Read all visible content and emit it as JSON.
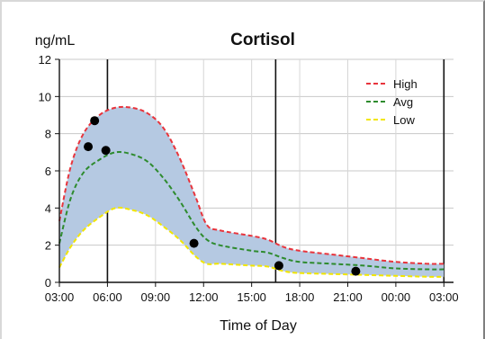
{
  "chart_data": {
    "type": "area",
    "title": "Cortisol",
    "ylabel": "ng/mL",
    "xlabel": "Time of Day",
    "x_unit": "hours elapsed from 03:00 (tick labels show clock time)",
    "xlim": [
      0,
      24.6
    ],
    "ylim": [
      0,
      12
    ],
    "x_ticks": [
      0,
      3,
      6,
      9,
      12,
      15,
      18,
      21,
      24
    ],
    "x_tick_labels": [
      "03:00",
      "06:00",
      "09:00",
      "12:00",
      "15:00",
      "18:00",
      "21:00",
      "00:00",
      "03:00"
    ],
    "y_ticks": [
      0,
      2,
      4,
      6,
      8,
      10,
      12
    ],
    "y_tick_labels": [
      "0",
      "2",
      "4",
      "6",
      "8",
      "10",
      "12"
    ],
    "grid": true,
    "major_vertical_lines": [
      3,
      13.5,
      24
    ],
    "legend_position": "top-right",
    "band_fill": "#b5c9e2",
    "series": [
      {
        "name": "High",
        "color": "#e8343c",
        "style": "dashed",
        "points": [
          [
            0,
            3.3
          ],
          [
            0.7,
            6.2
          ],
          [
            1.5,
            8.0
          ],
          [
            2.5,
            9.0
          ],
          [
            3.5,
            9.4
          ],
          [
            4.5,
            9.4
          ],
          [
            5.5,
            9.1
          ],
          [
            6.5,
            8.3
          ],
          [
            7.5,
            6.7
          ],
          [
            8.5,
            4.6
          ],
          [
            9.2,
            3.1
          ],
          [
            10.0,
            2.8
          ],
          [
            12.0,
            2.5
          ],
          [
            13.0,
            2.3
          ],
          [
            14.0,
            1.9
          ],
          [
            15.0,
            1.7
          ],
          [
            17.0,
            1.5
          ],
          [
            19.0,
            1.3
          ],
          [
            21.0,
            1.1
          ],
          [
            23.0,
            1.0
          ],
          [
            24.0,
            1.0
          ]
        ]
      },
      {
        "name": "Avg",
        "color": "#2e8b2e",
        "style": "dashed",
        "points": [
          [
            0,
            2.1
          ],
          [
            0.7,
            4.5
          ],
          [
            1.5,
            5.9
          ],
          [
            2.5,
            6.6
          ],
          [
            3.5,
            7.0
          ],
          [
            4.5,
            6.9
          ],
          [
            5.5,
            6.5
          ],
          [
            6.5,
            5.6
          ],
          [
            7.5,
            4.4
          ],
          [
            8.5,
            3.0
          ],
          [
            9.2,
            2.3
          ],
          [
            10.0,
            2.0
          ],
          [
            12.0,
            1.7
          ],
          [
            13.0,
            1.6
          ],
          [
            14.0,
            1.3
          ],
          [
            15.0,
            1.1
          ],
          [
            17.0,
            1.0
          ],
          [
            19.0,
            0.9
          ],
          [
            21.0,
            0.75
          ],
          [
            23.0,
            0.7
          ],
          [
            24.0,
            0.7
          ]
        ]
      },
      {
        "name": "Low",
        "color": "#f2e600",
        "style": "dashed",
        "points": [
          [
            0,
            0.8
          ],
          [
            0.7,
            1.9
          ],
          [
            1.5,
            2.8
          ],
          [
            2.5,
            3.5
          ],
          [
            3.5,
            4.0
          ],
          [
            4.5,
            3.9
          ],
          [
            5.5,
            3.6
          ],
          [
            6.5,
            3.0
          ],
          [
            7.5,
            2.3
          ],
          [
            8.5,
            1.4
          ],
          [
            9.2,
            1.0
          ],
          [
            10.0,
            1.0
          ],
          [
            12.0,
            0.9
          ],
          [
            13.0,
            0.85
          ],
          [
            14.0,
            0.6
          ],
          [
            15.0,
            0.5
          ],
          [
            17.0,
            0.45
          ],
          [
            19.0,
            0.4
          ],
          [
            21.0,
            0.35
          ],
          [
            23.0,
            0.3
          ],
          [
            24.0,
            0.3
          ]
        ]
      }
    ],
    "measurements": {
      "color": "#000000",
      "points": [
        [
          1.8,
          7.3
        ],
        [
          2.2,
          8.7
        ],
        [
          2.9,
          7.1
        ],
        [
          8.4,
          2.1
        ],
        [
          13.7,
          0.9
        ],
        [
          18.5,
          0.6
        ]
      ]
    }
  }
}
